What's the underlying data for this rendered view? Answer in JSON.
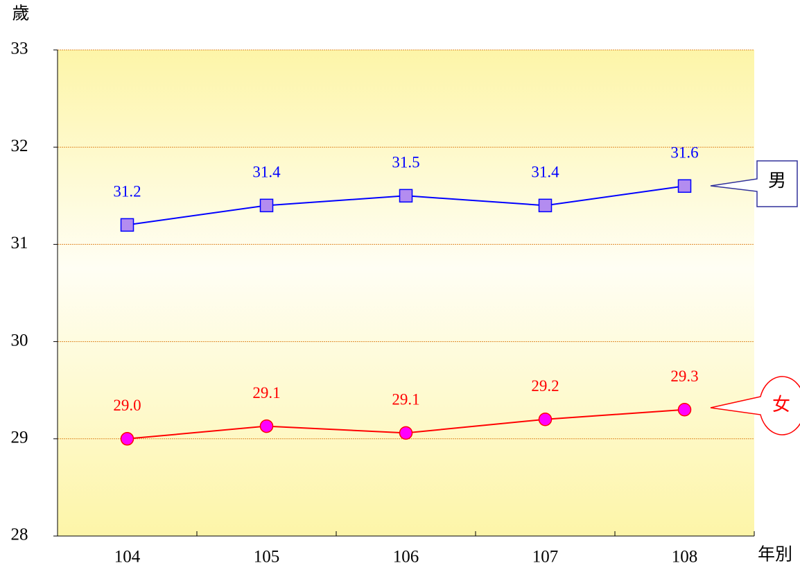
{
  "chart_data": {
    "type": "line",
    "y_axis_label": "歲",
    "x_axis_label": "年別",
    "categories": [
      "104",
      "105",
      "106",
      "107",
      "108"
    ],
    "series": [
      {
        "name": "男",
        "color": "#0000ff",
        "marker": "square",
        "marker_color": "#b38cf0",
        "values": [
          31.2,
          31.4,
          31.5,
          31.4,
          31.6
        ],
        "value_labels": [
          "31.2",
          "31.4",
          "31.5",
          "31.4",
          "31.6"
        ]
      },
      {
        "name": "女",
        "color": "#ff0000",
        "marker": "circle",
        "marker_color": "#ff00ff",
        "values": [
          29.0,
          29.13,
          29.06,
          29.2,
          29.3
        ],
        "value_labels": [
          "29.0",
          "29.1",
          "29.1",
          "29.2",
          "29.3"
        ]
      }
    ],
    "ylim": [
      28,
      33
    ],
    "yticks": [
      28,
      29,
      30,
      31,
      32,
      33
    ],
    "grid": true
  }
}
